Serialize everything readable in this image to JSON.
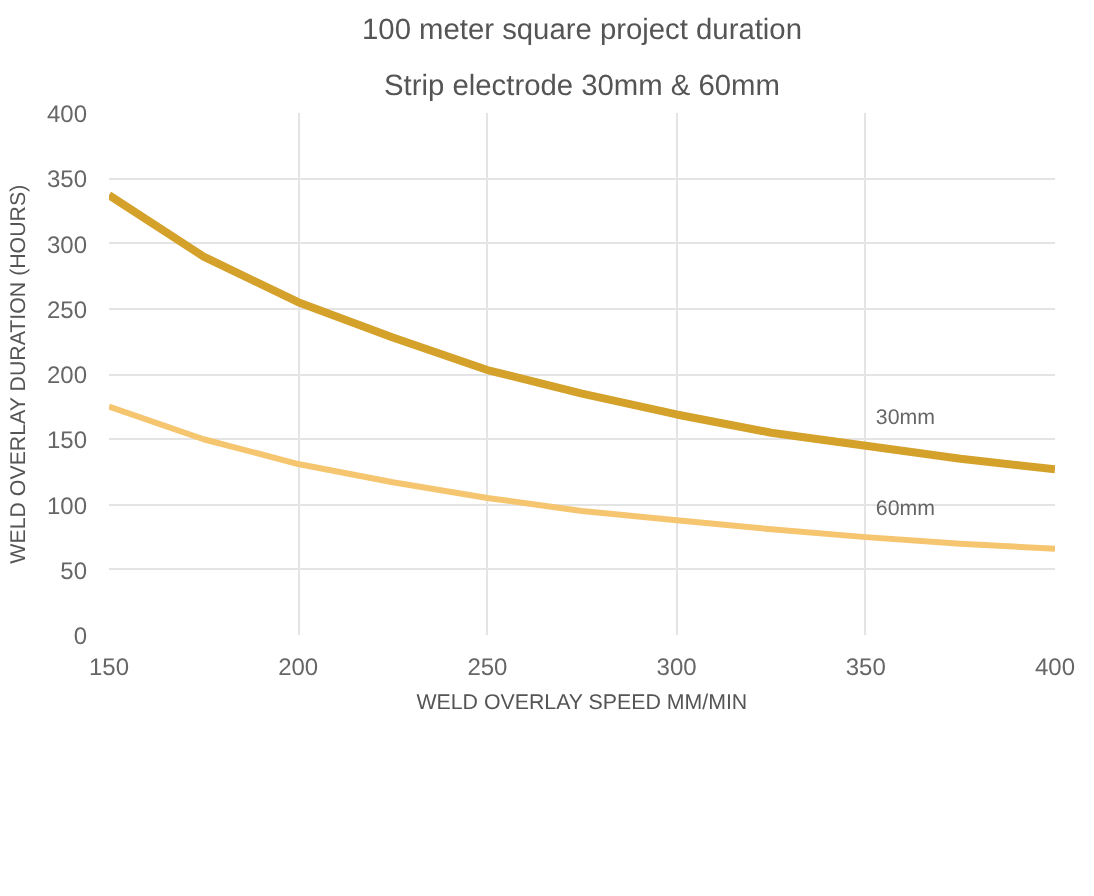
{
  "chart_data": {
    "type": "line",
    "title": "100 meter square project duration",
    "subtitle": "Strip electrode 30mm & 60mm",
    "xlabel": "WELD OVERLAY SPEED MM/MIN",
    "ylabel": "WELD OVERLAY DURATION (HOURS)",
    "x": [
      150,
      175,
      200,
      225,
      250,
      275,
      300,
      325,
      350,
      375,
      400
    ],
    "series": [
      {
        "name": "30mm",
        "color": "#d4a12a",
        "values": [
          337,
          290,
          255,
          228,
          203,
          185,
          169,
          155,
          145,
          135,
          127
        ]
      },
      {
        "name": "60mm",
        "color": "#f5c56f",
        "values": [
          175,
          150,
          131,
          117,
          105,
          95,
          88,
          81,
          75,
          70,
          66
        ]
      }
    ],
    "xlim": [
      150,
      400
    ],
    "xticks": [
      150,
      200,
      250,
      300,
      350,
      400
    ],
    "ylim": [
      0,
      400
    ],
    "yticks": [
      0,
      50,
      100,
      150,
      200,
      250,
      300,
      350,
      400
    ],
    "grid": true,
    "marker": "none",
    "line_style": "solid"
  }
}
